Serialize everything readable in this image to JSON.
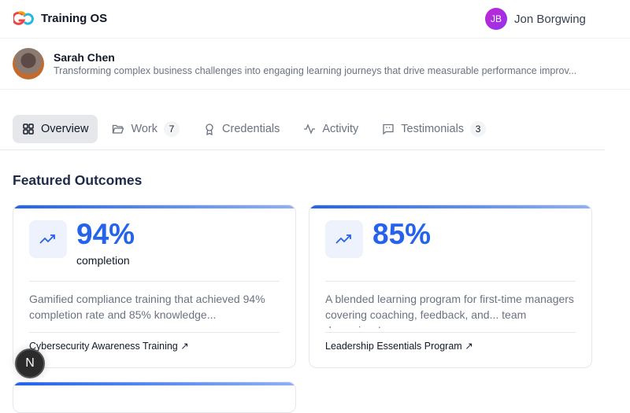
{
  "app": {
    "title": "Training OS"
  },
  "user": {
    "initials": "JB",
    "name": "Jon Borgwing",
    "avatar_color": "#c026d3"
  },
  "profile": {
    "name": "Sarah Chen",
    "tagline": "Transforming complex business challenges into engaging learning journeys that drive measurable performance improv..."
  },
  "tabs": [
    {
      "label": "Overview",
      "icon": "grid-icon",
      "active": true
    },
    {
      "label": "Work",
      "icon": "folder-icon",
      "count": "7"
    },
    {
      "label": "Credentials",
      "icon": "award-icon"
    },
    {
      "label": "Activity",
      "icon": "activity-icon"
    },
    {
      "label": "Testimonials",
      "icon": "message-quote-icon",
      "count": "3"
    }
  ],
  "section": {
    "title": "Featured Outcomes"
  },
  "outcomes": [
    {
      "value": "94%",
      "unit": "completion",
      "description": "Gamified compliance training that achieved 94% completion rate and 85% knowledge...",
      "link": "Cybersecurity Awareness Training",
      "link_icon": "arrow-up-right-icon"
    },
    {
      "value": "85%",
      "unit": "",
      "description": "A blended learning program for first-time managers covering coaching, feedback, and... team dynamics. I",
      "link": "Leadership Essentials Program",
      "link_icon": "arrow-up-right-icon"
    }
  ],
  "dev_badge": {
    "label": "N"
  },
  "colors": {
    "accent": "#2563eb",
    "heading": "#1e2a4a"
  }
}
